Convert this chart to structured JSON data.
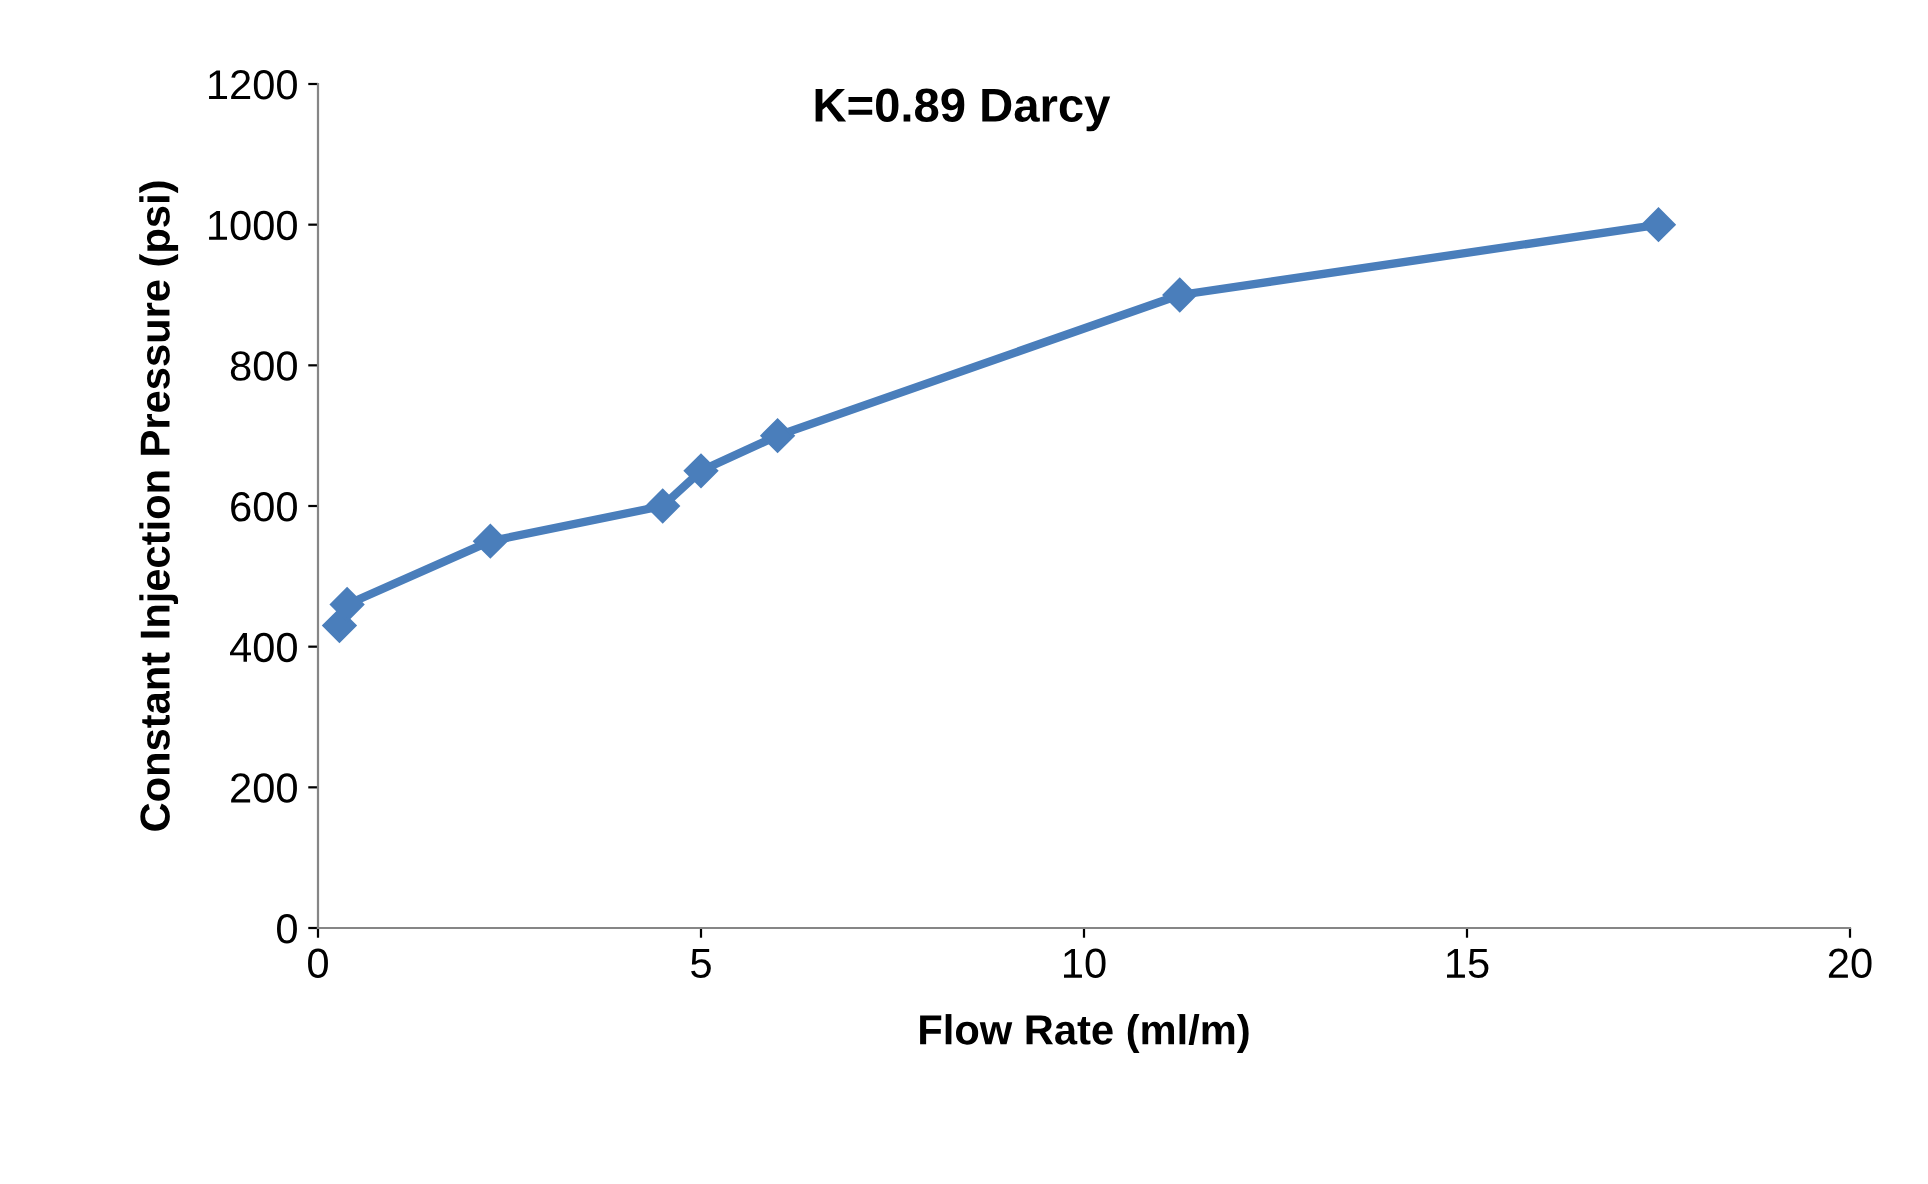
{
  "chart_data": {
    "type": "line",
    "xlabel": "Flow Rate (ml/m)",
    "ylabel": "Constant Injection Pressure (psi)",
    "annotations": [
      "K=0.89 Darcy"
    ],
    "x": [
      0.28,
      0.38,
      2.25,
      4.5,
      5.0,
      6.0,
      11.25,
      17.5
    ],
    "series": [
      {
        "color": "#4a7ebb",
        "values": [
          430,
          460,
          550,
          600,
          650,
          700,
          900,
          1000
        ]
      }
    ],
    "xlim": [
      0,
      20
    ],
    "xticks": [
      0,
      5,
      10,
      15,
      20
    ],
    "ylim": [
      0,
      1200
    ],
    "yticks": [
      0,
      200,
      400,
      600,
      800,
      1000,
      1200
    ],
    "grid": false,
    "legend": false,
    "marker": "diamond",
    "line_style": "solid"
  }
}
